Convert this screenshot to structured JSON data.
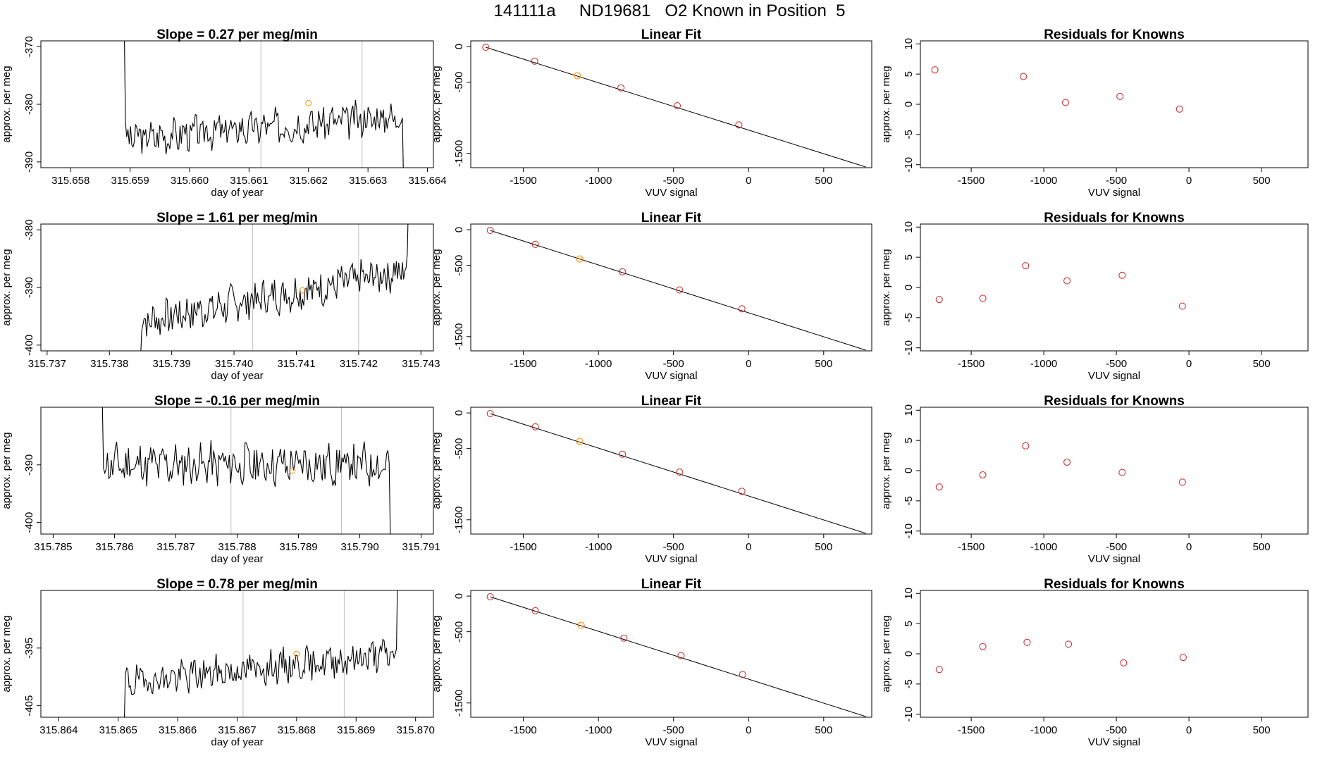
{
  "page": {
    "title": "141111a     ND19681   O2 Known in Position  5"
  },
  "colors": {
    "trace": "#000000",
    "fit_line": "#000000",
    "marker": "#cd3333",
    "known": "#ff8c00",
    "guide": "#bfbfbf"
  },
  "chart_data": [
    {
      "panel": "time",
      "row": 1,
      "type": "line",
      "title": "Slope =  0.27  per meg/min",
      "xlabel": "day of year",
      "ylabel": "approx. per meg",
      "xlim": [
        315.6575,
        315.6641
      ],
      "ylim": [
        -391,
        -369
      ],
      "xticks": [
        315.658,
        315.659,
        315.66,
        315.661,
        315.662,
        315.663,
        315.664
      ],
      "xtick_labels": [
        "315.658",
        "315.659",
        "315.660",
        "315.661",
        "315.662",
        "315.663",
        "315.664"
      ],
      "yticks": [
        -370,
        -380,
        -390
      ],
      "ytick_labels": [
        "-370",
        "-380",
        "-390"
      ],
      "vlines": [
        315.6612,
        315.6629
      ],
      "trace": {
        "x_start": 315.6589,
        "x_end": 315.6636,
        "base": -386,
        "end": -382,
        "noise": 2.6,
        "start_spike": -365,
        "end_drop": -395,
        "seed": 3
      },
      "known_marker": {
        "x": 315.662,
        "y": -379.8
      }
    },
    {
      "panel": "fit",
      "row": 1,
      "type": "scatter",
      "title": "Linear Fit",
      "xlabel": "VUV signal",
      "ylabel": "approx. per meg",
      "xlim": [
        -1850,
        820
      ],
      "ylim": [
        -1700,
        80
      ],
      "xticks": [
        -1500,
        -1000,
        -500,
        0,
        500
      ],
      "xtick_labels": [
        "-1500",
        "-1000",
        "-500",
        "0",
        "500"
      ],
      "yticks": [
        0,
        -500,
        -1500
      ],
      "ytick_labels": [
        "0",
        "-500",
        "-1500"
      ],
      "points": [
        [
          -1750,
          -10
        ],
        [
          -1425,
          -205
        ],
        [
          -1140,
          -410
        ],
        [
          -850,
          -580
        ],
        [
          -475,
          -830
        ],
        [
          -65,
          -1100
        ]
      ],
      "fit_line": [
        [
          -1750,
          -10
        ],
        [
          780,
          -1690
        ]
      ],
      "known_index": 2
    },
    {
      "panel": "residuals",
      "row": 1,
      "type": "scatter",
      "title": "Residuals for Knowns",
      "xlabel": "VUV signal",
      "ylabel": "approx. per meg",
      "xlim": [
        -1850,
        820
      ],
      "ylim": [
        -10.5,
        10.5
      ],
      "xticks": [
        -1500,
        -1000,
        -500,
        0,
        500
      ],
      "xtick_labels": [
        "-1500",
        "-1000",
        "-500",
        "0",
        "500"
      ],
      "yticks": [
        10,
        5,
        0,
        -5,
        -10
      ],
      "ytick_labels": [
        "10",
        "5",
        "0",
        "-5",
        "-10"
      ],
      "points": [
        [
          -1750,
          5.7
        ],
        [
          -1140,
          4.6
        ],
        [
          -850,
          0.3
        ],
        [
          -475,
          1.3
        ],
        [
          -65,
          -0.8
        ]
      ]
    },
    {
      "panel": "time",
      "row": 2,
      "type": "line",
      "title": "Slope =  1.61  per meg/min",
      "xlabel": "day of year",
      "ylabel": "approx. per meg",
      "xlim": [
        315.7369,
        315.7432
      ],
      "ylim": [
        -401,
        -379
      ],
      "xticks": [
        315.737,
        315.738,
        315.739,
        315.74,
        315.741,
        315.742,
        315.743
      ],
      "xtick_labels": [
        "315.737",
        "315.738",
        "315.739",
        "315.740",
        "315.741",
        "315.742",
        "315.743"
      ],
      "yticks": [
        -380,
        -390,
        -400
      ],
      "ytick_labels": [
        "-380",
        "-390",
        "-400"
      ],
      "vlines": [
        315.7403,
        315.742
      ],
      "trace": {
        "x_start": 315.7385,
        "x_end": 315.7428,
        "base": -396,
        "end": -387,
        "noise": 2.8,
        "start_spike": -402,
        "end_drop": -375,
        "seed": 7
      },
      "known_marker": {
        "x": 315.7411,
        "y": -390.5
      }
    },
    {
      "panel": "fit",
      "row": 2,
      "type": "scatter",
      "title": "Linear Fit",
      "xlabel": "VUV signal",
      "ylabel": "approx. per meg",
      "xlim": [
        -1850,
        820
      ],
      "ylim": [
        -1700,
        80
      ],
      "xticks": [
        -1500,
        -1000,
        -500,
        0,
        500
      ],
      "xtick_labels": [
        "-1500",
        "-1000",
        "-500",
        "0",
        "500"
      ],
      "yticks": [
        0,
        -500,
        -1500
      ],
      "ytick_labels": [
        "0",
        "-500",
        "-1500"
      ],
      "points": [
        [
          -1720,
          -10
        ],
        [
          -1420,
          -205
        ],
        [
          -1125,
          -410
        ],
        [
          -840,
          -590
        ],
        [
          -460,
          -845
        ],
        [
          -45,
          -1110
        ]
      ],
      "fit_line": [
        [
          -1720,
          -10
        ],
        [
          780,
          -1690
        ]
      ],
      "known_index": 2
    },
    {
      "panel": "residuals",
      "row": 2,
      "type": "scatter",
      "title": "Residuals for Knowns",
      "xlabel": "VUV signal",
      "ylabel": "approx. per meg",
      "xlim": [
        -1850,
        820
      ],
      "ylim": [
        -10.5,
        10.5
      ],
      "xticks": [
        -1500,
        -1000,
        -500,
        0,
        500
      ],
      "xtick_labels": [
        "-1500",
        "-1000",
        "-500",
        "0",
        "500"
      ],
      "yticks": [
        10,
        5,
        0,
        -5,
        -10
      ],
      "ytick_labels": [
        "10",
        "5",
        "0",
        "-5",
        "-10"
      ],
      "points": [
        [
          -1720,
          -2.0
        ],
        [
          -1420,
          -1.8
        ],
        [
          -1125,
          3.6
        ],
        [
          -840,
          1.1
        ],
        [
          -460,
          2.0
        ],
        [
          -45,
          -3.1
        ]
      ]
    },
    {
      "panel": "time",
      "row": 3,
      "type": "line",
      "title": "Slope =  -0.16  per meg/min",
      "xlabel": "day of year",
      "ylabel": "approx. per meg",
      "xlim": [
        315.7848,
        315.7912
      ],
      "ylim": [
        -402,
        -380
      ],
      "xticks": [
        315.785,
        315.786,
        315.787,
        315.788,
        315.789,
        315.79,
        315.791
      ],
      "xtick_labels": [
        "315.785",
        "315.786",
        "315.787",
        "315.788",
        "315.789",
        "315.790",
        "315.791"
      ],
      "yticks": [
        -390,
        -400
      ],
      "ytick_labels": [
        "-390",
        "-400"
      ],
      "vlines": [
        315.7879,
        315.7897
      ],
      "trace": {
        "x_start": 315.7858,
        "x_end": 315.7905,
        "base": -390,
        "end": -390,
        "noise": 3.2,
        "start_spike": -378,
        "end_drop": -404,
        "seed": 11
      },
      "known_marker": {
        "x": 315.7889,
        "y": -391
      }
    },
    {
      "panel": "fit",
      "row": 3,
      "type": "scatter",
      "title": "Linear Fit",
      "xlabel": "VUV signal",
      "ylabel": "approx. per meg",
      "xlim": [
        -1850,
        820
      ],
      "ylim": [
        -1700,
        80
      ],
      "xticks": [
        -1500,
        -1000,
        -500,
        0,
        500
      ],
      "xtick_labels": [
        "-1500",
        "-1000",
        "-500",
        "0",
        "500"
      ],
      "yticks": [
        0,
        -500,
        -1500
      ],
      "ytick_labels": [
        "0",
        "-500",
        "-1500"
      ],
      "points": [
        [
          -1720,
          -10
        ],
        [
          -1420,
          -195
        ],
        [
          -1125,
          -400
        ],
        [
          -840,
          -580
        ],
        [
          -460,
          -830
        ],
        [
          -45,
          -1100
        ]
      ],
      "fit_line": [
        [
          -1720,
          -10
        ],
        [
          780,
          -1690
        ]
      ],
      "known_index": 2
    },
    {
      "panel": "residuals",
      "row": 3,
      "type": "scatter",
      "title": "Residuals for Knowns",
      "xlabel": "VUV signal",
      "ylabel": "approx. per meg",
      "xlim": [
        -1850,
        820
      ],
      "ylim": [
        -10.5,
        10.5
      ],
      "xticks": [
        -1500,
        -1000,
        -500,
        0,
        500
      ],
      "xtick_labels": [
        "-1500",
        "-1000",
        "-500",
        "0",
        "500"
      ],
      "yticks": [
        10,
        5,
        0,
        -5,
        -10
      ],
      "ytick_labels": [
        "10",
        "5",
        "0",
        "-5",
        "-10"
      ],
      "points": [
        [
          -1720,
          -2.7
        ],
        [
          -1420,
          -0.7
        ],
        [
          -1125,
          4.1
        ],
        [
          -840,
          1.4
        ],
        [
          -460,
          -0.3
        ],
        [
          -45,
          -1.9
        ]
      ]
    },
    {
      "panel": "time",
      "row": 4,
      "type": "line",
      "title": "Slope =  0.78  per meg/min",
      "xlabel": "day of year",
      "ylabel": "approx. per meg",
      "xlim": [
        315.8637,
        315.8703
      ],
      "ylim": [
        -407,
        -385
      ],
      "xticks": [
        315.864,
        315.865,
        315.866,
        315.867,
        315.868,
        315.869,
        315.87
      ],
      "xtick_labels": [
        "315.864",
        "315.865",
        "315.866",
        "315.867",
        "315.868",
        "315.869",
        "315.870"
      ],
      "yticks": [
        -395,
        -405
      ],
      "ytick_labels": [
        "-395",
        "-405"
      ],
      "vlines": [
        315.8671,
        315.8688
      ],
      "trace": {
        "x_start": 315.8651,
        "x_end": 315.8697,
        "base": -401,
        "end": -396,
        "noise": 2.5,
        "start_spike": -409,
        "end_drop": -380,
        "seed": 19
      },
      "known_marker": {
        "x": 315.868,
        "y": -396
      }
    },
    {
      "panel": "fit",
      "row": 4,
      "type": "scatter",
      "title": "Linear Fit",
      "xlabel": "VUV signal",
      "ylabel": "approx. per meg",
      "xlim": [
        -1850,
        820
      ],
      "ylim": [
        -1700,
        80
      ],
      "xticks": [
        -1500,
        -1000,
        -500,
        0,
        500
      ],
      "xtick_labels": [
        "-1500",
        "-1000",
        "-500",
        "0",
        "500"
      ],
      "yticks": [
        0,
        -500,
        -1500
      ],
      "ytick_labels": [
        "0",
        "-500",
        "-1500"
      ],
      "points": [
        [
          -1720,
          -10
        ],
        [
          -1420,
          -205
        ],
        [
          -1115,
          -410
        ],
        [
          -830,
          -590
        ],
        [
          -450,
          -835
        ],
        [
          -40,
          -1100
        ]
      ],
      "fit_line": [
        [
          -1720,
          -10
        ],
        [
          780,
          -1690
        ]
      ],
      "known_index": 2
    },
    {
      "panel": "residuals",
      "row": 4,
      "type": "scatter",
      "title": "Residuals for Knowns",
      "xlabel": "VUV signal",
      "ylabel": "approx. per meg",
      "xlim": [
        -1850,
        820
      ],
      "ylim": [
        -10.5,
        10.5
      ],
      "xticks": [
        -1500,
        -1000,
        -500,
        0,
        500
      ],
      "xtick_labels": [
        "-1500",
        "-1000",
        "-500",
        "0",
        "500"
      ],
      "yticks": [
        10,
        5,
        0,
        -5,
        -10
      ],
      "ytick_labels": [
        "10",
        "5",
        "0",
        "-5",
        "-10"
      ],
      "points": [
        [
          -1720,
          -2.6
        ],
        [
          -1420,
          1.2
        ],
        [
          -1115,
          1.9
        ],
        [
          -830,
          1.6
        ],
        [
          -450,
          -1.5
        ],
        [
          -40,
          -0.6
        ]
      ]
    }
  ]
}
